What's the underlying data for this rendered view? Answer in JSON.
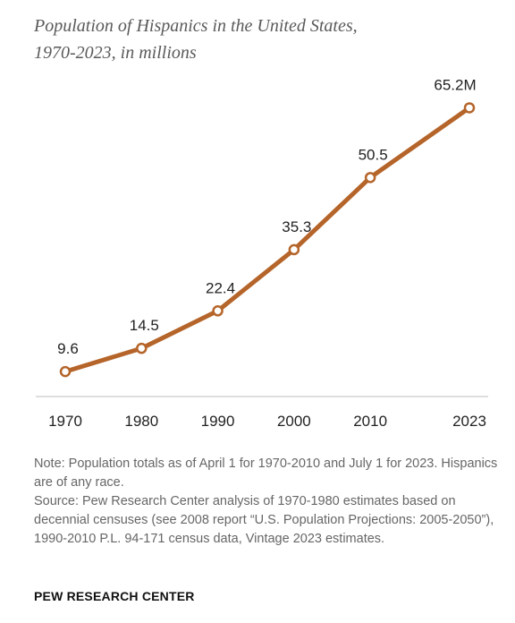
{
  "title_line1": "Population of Hispanics in the United States,",
  "title_line2": "1970-2023, in millions",
  "chart_data": {
    "type": "line",
    "title": "Population of Hispanics in the United States, 1970-2023, in millions",
    "categories": [
      "1970",
      "1980",
      "1990",
      "2000",
      "2010",
      "2023"
    ],
    "values": [
      9.6,
      14.5,
      22.4,
      35.3,
      50.5,
      65.2
    ],
    "data_labels": [
      "9.6",
      "14.5",
      "22.4",
      "35.3",
      "50.5",
      "65.2M"
    ],
    "xlabel": "",
    "ylabel": "",
    "ylim": [
      0,
      70
    ],
    "grid": false,
    "legend": "none",
    "line_color": "#B5652A"
  },
  "note": "Note: Population totals as of April 1 for 1970-2010 and July 1 for 2023. Hispanics are of any race.",
  "source": "Source: Pew Research Center analysis of 1970-1980 estimates based on decennial censuses (see 2008 report “U.S. Population Projections: 2005-2050”), 1990-2010 P.L. 94-171 census data, Vintage 2023 estimates.",
  "brand": "PEW RESEARCH CENTER"
}
